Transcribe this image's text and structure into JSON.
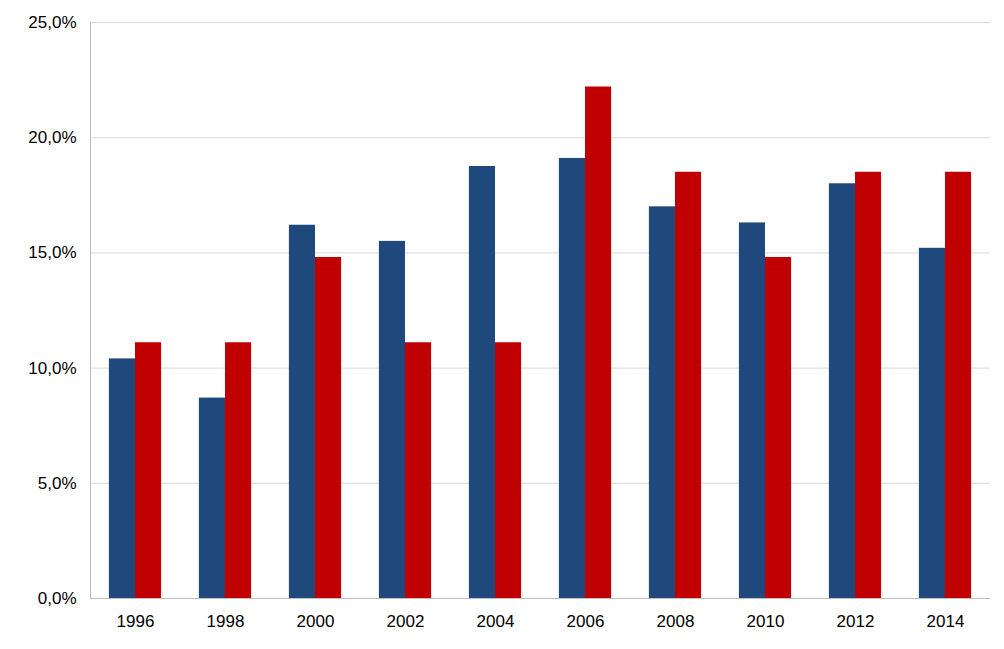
{
  "chart_data": {
    "type": "bar",
    "categories": [
      "1996",
      "1998",
      "2000",
      "2002",
      "2004",
      "2006",
      "2008",
      "2010",
      "2012",
      "2014"
    ],
    "series": [
      {
        "color": "#1F497D",
        "values": [
          10.4,
          8.7,
          16.2,
          15.5,
          18.75,
          19.1,
          17.0,
          16.3,
          18.0,
          15.2
        ]
      },
      {
        "color": "#C00000",
        "values": [
          11.1,
          11.1,
          14.8,
          11.1,
          11.1,
          22.2,
          18.5,
          14.8,
          18.5,
          18.5
        ]
      }
    ],
    "ylim": [
      0,
      25
    ],
    "yticks": [
      {
        "value": 0,
        "label": "0,0%"
      },
      {
        "value": 5,
        "label": "5,0%"
      },
      {
        "value": 10,
        "label": "10,0%"
      },
      {
        "value": 15,
        "label": "15,0%"
      },
      {
        "value": 20,
        "label": "20,0%"
      },
      {
        "value": 25,
        "label": "25,0%"
      }
    ],
    "grid": true
  }
}
